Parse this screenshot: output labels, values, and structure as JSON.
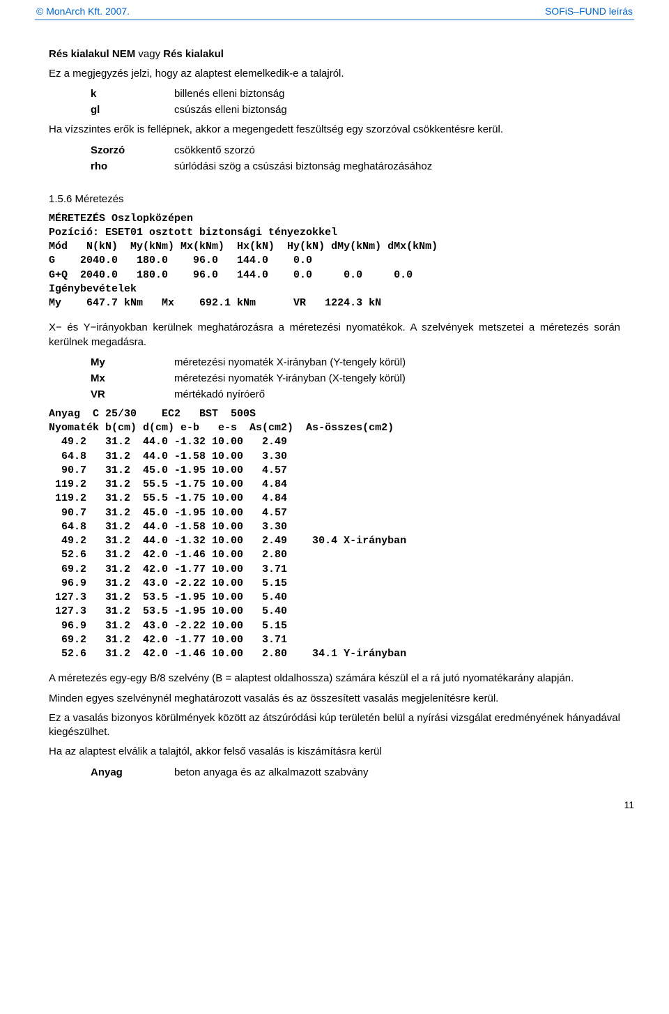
{
  "header": {
    "left": "© MonArch Kft. 2007.",
    "right": "SOFiS–FUND leírás"
  },
  "heading1": {
    "part1": "Rés kialakul NEM",
    "part2": " vagy ",
    "part3": "Rés kialakul"
  },
  "intro_paragraph": "Ez a megjegyzés jelzi, hogy az alaptest elemelkedik-e a talajról.",
  "defs1": [
    {
      "term": "k",
      "desc": "billenés elleni biztonság"
    },
    {
      "term": "gl",
      "desc": "csúszás elleni biztonság"
    }
  ],
  "para_force": "Ha vízszintes erők is fellépnek, akkor a megengedett feszültség egy szorzóval csökkentésre kerül.",
  "defs2": [
    {
      "term": "Szorzó",
      "desc": "csökkentő szorzó"
    },
    {
      "term": "rho",
      "desc": "súrlódási szög a csúszási biztonság meghatározásához"
    }
  ],
  "section156": "1.5.6 Méretezés",
  "mono1_lines": [
    "MÉRETEZÉS Oszlopközépen",
    "Pozíció: ESET01 osztott biztonsági tényezokkel",
    "Mód   N(kN)  My(kNm) Mx(kNm)  Hx(kN)  Hy(kN) dMy(kNm) dMx(kNm)",
    "G    2040.0   180.0    96.0   144.0    0.0",
    "G+Q  2040.0   180.0    96.0   144.0    0.0     0.0     0.0",
    "Igénybevételek",
    "My    647.7 kNm   Mx    692.1 kNm      VR   1224.3 kN"
  ],
  "para_xy": "X− és Y−irányokban kerülnek meghatározásra a méretezési nyomatékok. A szelvények metszetei a méretezés során kerülnek megadásra.",
  "defs3": [
    {
      "term": "My",
      "desc": "méretezési nyomaték X-irányban (Y-tengely körül)"
    },
    {
      "term": "Mx",
      "desc": "méretezési nyomaték Y-irányban (X-tengely körül)"
    },
    {
      "term": "VR",
      "desc": "mértékadó nyíróerő"
    }
  ],
  "mono2_lines": [
    "Anyag  C 25/30    EC2   BST  500S",
    "Nyomaték b(cm) d(cm) e-b   e-s  As(cm2)  As-összes(cm2)",
    "  49.2   31.2  44.0 -1.32 10.00   2.49",
    "  64.8   31.2  44.0 -1.58 10.00   3.30",
    "  90.7   31.2  45.0 -1.95 10.00   4.57",
    " 119.2   31.2  55.5 -1.75 10.00   4.84",
    " 119.2   31.2  55.5 -1.75 10.00   4.84",
    "  90.7   31.2  45.0 -1.95 10.00   4.57",
    "  64.8   31.2  44.0 -1.58 10.00   3.30",
    "  49.2   31.2  44.0 -1.32 10.00   2.49    30.4 X-irányban",
    "  52.6   31.2  42.0 -1.46 10.00   2.80",
    "  69.2   31.2  42.0 -1.77 10.00   3.71",
    "  96.9   31.2  43.0 -2.22 10.00   5.15",
    " 127.3   31.2  53.5 -1.95 10.00   5.40",
    " 127.3   31.2  53.5 -1.95 10.00   5.40",
    "  96.9   31.2  43.0 -2.22 10.00   5.15",
    "  69.2   31.2  42.0 -1.77 10.00   3.71",
    "  52.6   31.2  42.0 -1.46 10.00   2.80    34.1 Y-irányban"
  ],
  "para_b8": "A méretezés egy-egy B/8 szelvény (B = alaptest oldalhossza) számára készül el a rá jutó nyomatékarány alapján.",
  "para_vas": "Minden egyes szelvénynél meghatározott vasalás és az összesített vasalás megjelenítésre kerül.",
  "para_atsz": "Ez a vasalás bizonyos körülmények között az átszúródási kúp területén belül a nyírási vizsgálat eredményének hányadával kiegészülhet.",
  "para_felso": "Ha az alaptest elválik a talajtól, akkor felső vasalás is kiszámításra kerül",
  "defs4": [
    {
      "term": "Anyag",
      "desc": "beton anyaga és az alkalmazott szabvány"
    }
  ],
  "page_number": "11"
}
